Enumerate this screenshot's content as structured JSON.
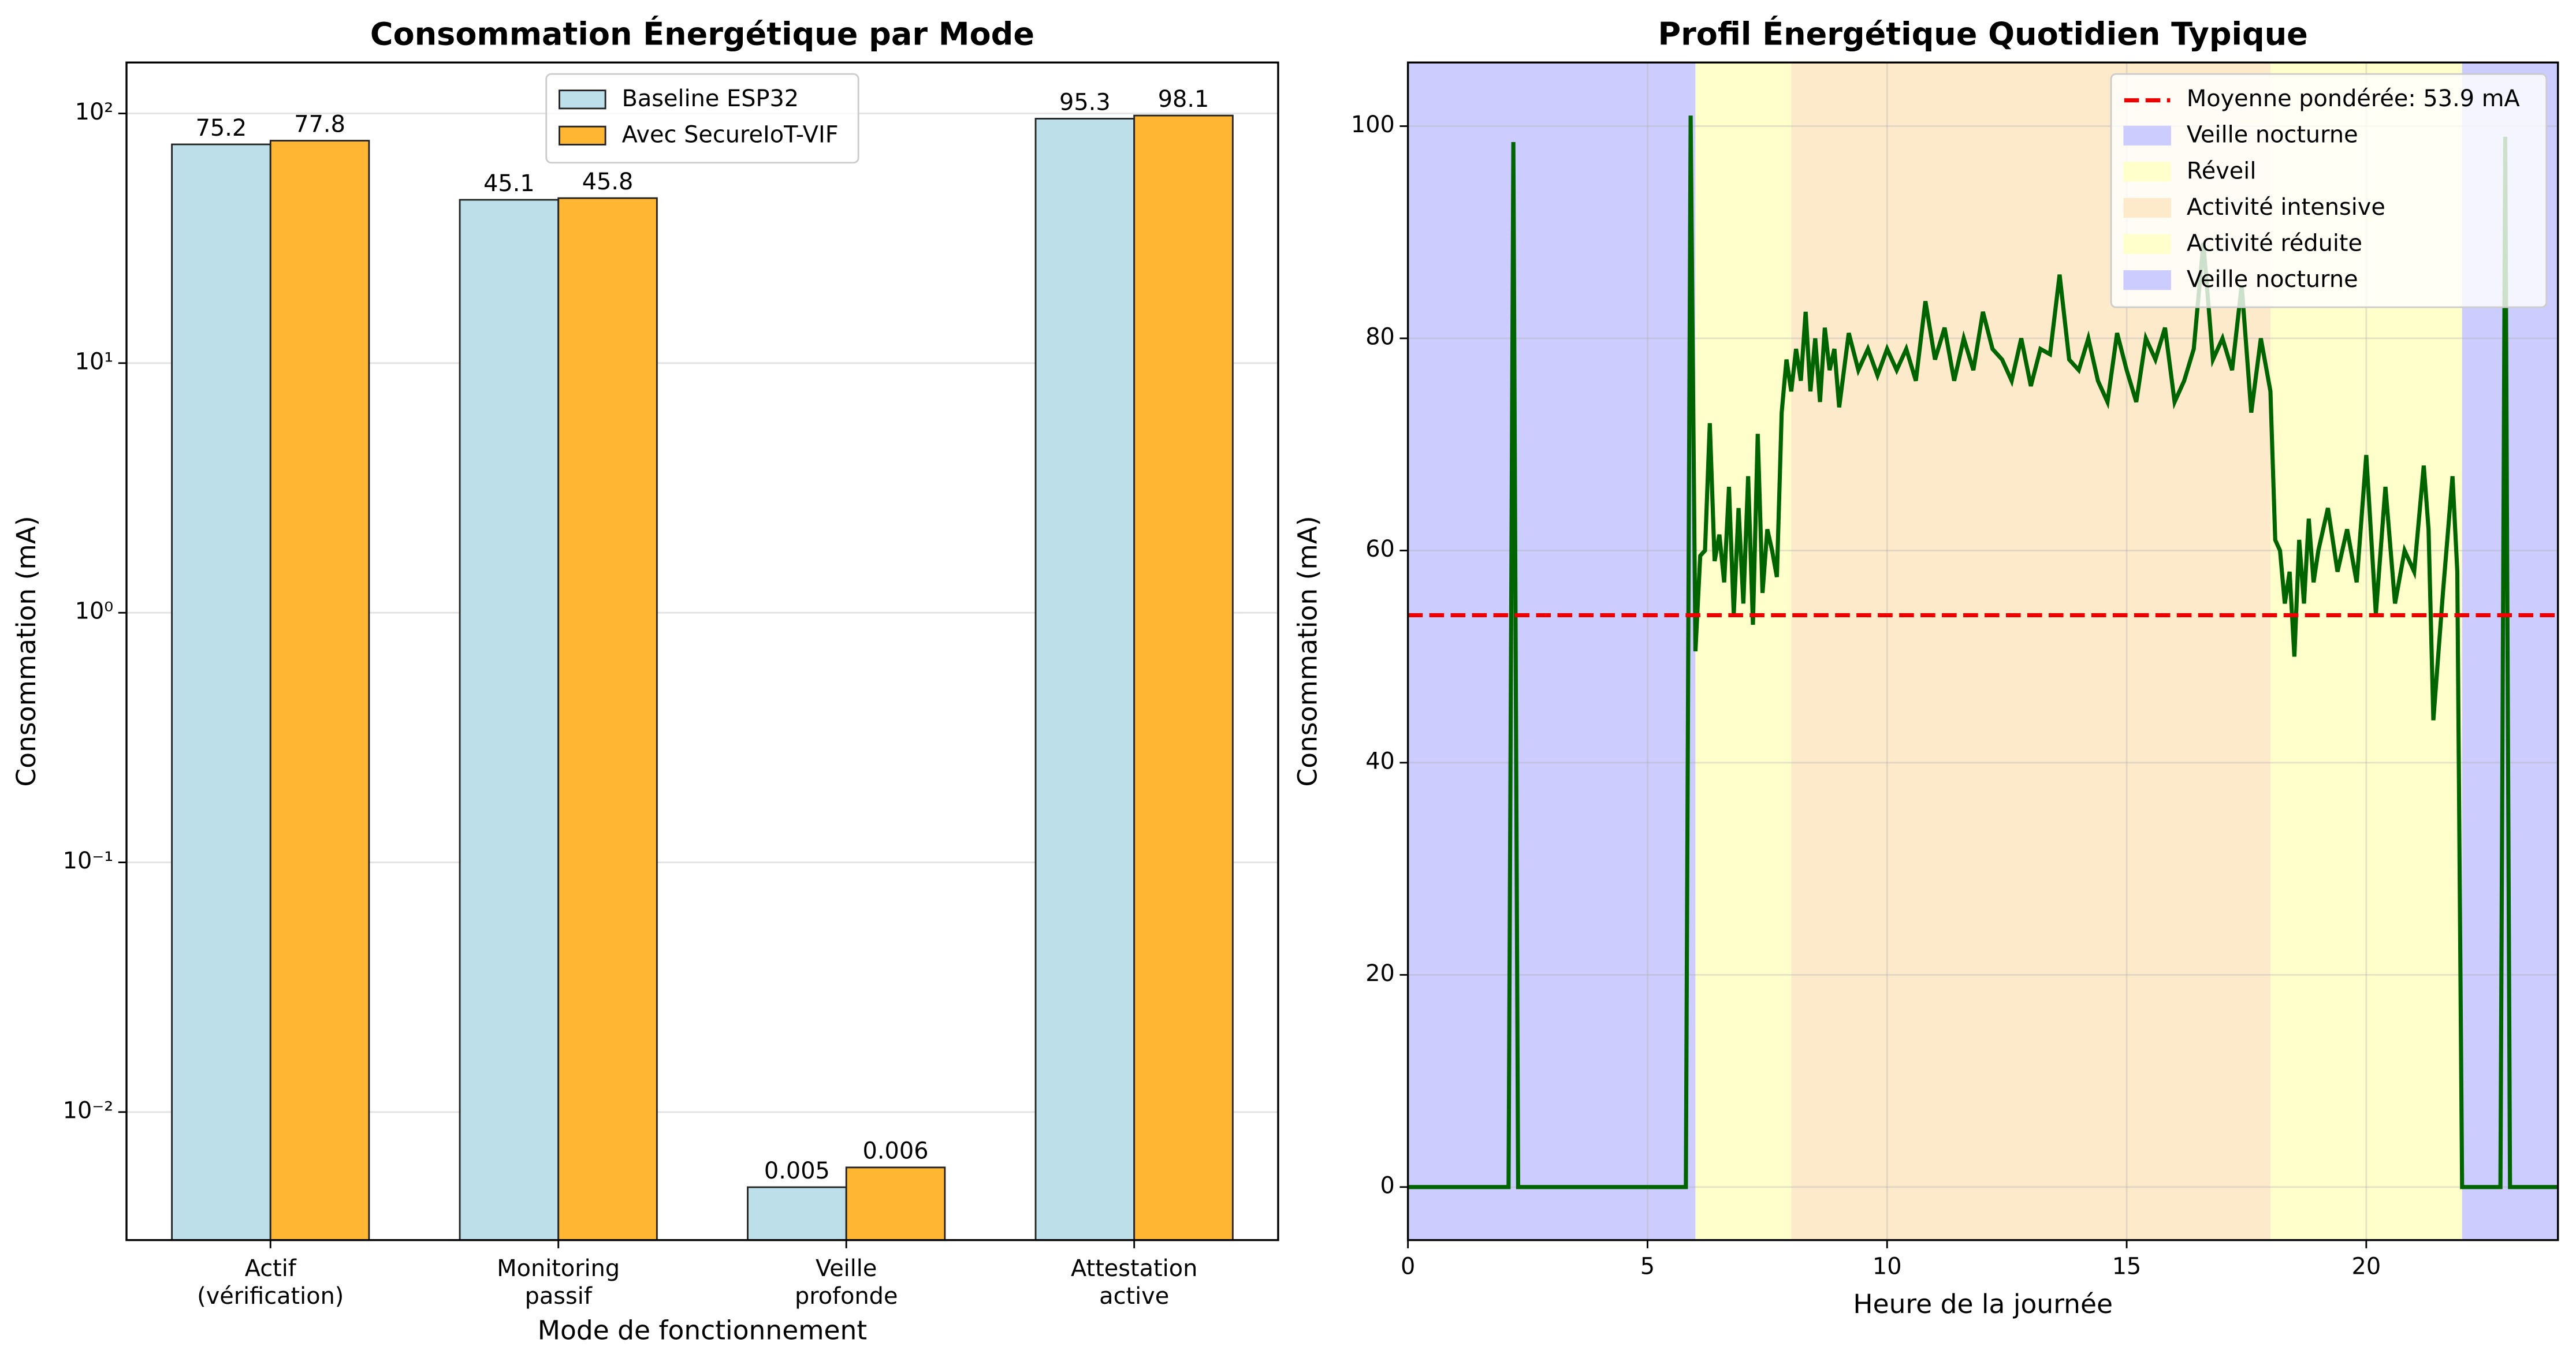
{
  "chart_data": [
    {
      "type": "bar",
      "title": "Consommation Énergétique par Mode",
      "xlabel": "Mode de fonctionnement",
      "ylabel": "Consommation (mA)",
      "categories": [
        [
          "Actif",
          "(vérification)"
        ],
        [
          "Monitoring",
          "passif"
        ],
        [
          "Veille",
          "profonde"
        ],
        [
          "Attestation",
          "active"
        ]
      ],
      "series": [
        {
          "name": "Baseline ESP32",
          "color": "#bddfe9",
          "values": [
            75.2,
            45.1,
            0.005,
            95.3
          ]
        },
        {
          "name": "Avec SecureIoT-VIF",
          "color": "#ffb733",
          "values": [
            77.8,
            45.8,
            0.006,
            98.1
          ]
        }
      ],
      "log": true,
      "ylim": [
        0.00307,
        160
      ],
      "yticks": [
        {
          "value": 0.01,
          "label": "10⁻²"
        },
        {
          "value": 0.1,
          "label": "10⁻¹"
        },
        {
          "value": 1,
          "label": "10⁰"
        },
        {
          "value": 10,
          "label": "10¹"
        },
        {
          "value": 100,
          "label": "10²"
        }
      ],
      "grid": true,
      "legend": "upper center"
    },
    {
      "type": "line",
      "title": "Profil Énergétique Quotidien Typique",
      "xlabel": "Heure de la journée",
      "ylabel": "Consommation (mA)",
      "x": [
        0,
        0.5,
        1,
        1.5,
        2.1,
        2.2,
        2.3,
        3,
        4,
        5,
        5.8,
        5.9,
        6.0,
        6.1,
        6.2,
        6.3,
        6.4,
        6.5,
        6.6,
        6.7,
        6.8,
        6.9,
        7.0,
        7.1,
        7.2,
        7.3,
        7.4,
        7.5,
        7.6,
        7.7,
        7.8,
        7.9,
        8.0,
        8.1,
        8.2,
        8.3,
        8.4,
        8.5,
        8.6,
        8.7,
        8.8,
        8.9,
        9.0,
        9.2,
        9.4,
        9.6,
        9.8,
        10.0,
        10.2,
        10.4,
        10.6,
        10.8,
        11.0,
        11.2,
        11.4,
        11.6,
        11.8,
        12.0,
        12.2,
        12.4,
        12.6,
        12.8,
        13.0,
        13.2,
        13.4,
        13.6,
        13.8,
        14.0,
        14.2,
        14.4,
        14.6,
        14.8,
        15.0,
        15.2,
        15.4,
        15.6,
        15.8,
        16.0,
        16.2,
        16.4,
        16.6,
        16.8,
        17.0,
        17.2,
        17.4,
        17.6,
        17.8,
        18.0,
        18.1,
        18.2,
        18.3,
        18.4,
        18.5,
        18.6,
        18.7,
        18.8,
        18.9,
        19.0,
        19.2,
        19.4,
        19.6,
        19.8,
        20.0,
        20.2,
        20.4,
        20.6,
        20.8,
        21.0,
        21.2,
        21.3,
        21.4,
        21.6,
        21.8,
        21.9,
        22.0,
        22.8,
        22.9,
        23.0,
        24
      ],
      "series": [
        {
          "color": "#006400",
          "values": [
            0,
            0,
            0,
            0,
            0,
            98.5,
            0,
            0,
            0,
            0,
            0,
            101,
            50.5,
            59.5,
            60,
            72,
            59,
            61.5,
            57,
            66,
            54,
            64,
            55,
            67,
            53,
            71,
            56,
            62,
            60,
            57.5,
            73,
            78,
            75,
            79,
            76,
            82.5,
            75,
            80,
            74,
            81,
            77,
            79,
            73.5,
            80.5,
            77,
            79,
            76.5,
            79,
            77,
            79,
            76,
            83.5,
            78,
            81,
            76,
            80,
            77,
            82.5,
            79,
            78,
            76,
            80,
            75.5,
            79,
            78.5,
            86,
            78,
            77,
            80,
            76,
            74,
            80.5,
            77,
            74,
            80,
            78,
            81,
            74,
            76,
            79,
            89,
            78,
            80,
            77,
            85,
            73,
            80,
            75,
            61,
            60,
            55,
            58,
            50,
            61,
            55,
            63,
            57,
            60,
            64,
            58,
            62,
            57,
            69,
            54,
            66,
            55,
            60,
            58,
            68,
            62,
            44,
            56,
            67,
            58,
            0,
            0,
            99,
            0,
            0
          ]
        }
      ],
      "regions": [
        {
          "name": "Veille nocturne",
          "range": [
            0,
            6
          ],
          "color": "#ccccff"
        },
        {
          "name": "Réveil",
          "range": [
            6,
            8
          ],
          "color": "#ffffcc"
        },
        {
          "name": "Activité intensive",
          "range": [
            8,
            18
          ],
          "color": "#fdeacb"
        },
        {
          "name": "Activité réduite",
          "range": [
            18,
            22
          ],
          "color": "#ffffcc"
        },
        {
          "name": "Veille nocturne",
          "range": [
            22,
            24
          ],
          "color": "#ccccff"
        }
      ],
      "mean": {
        "value": 53.9,
        "label": "Moyenne pondérée: 53.9 mA",
        "color": "#ee0000"
      },
      "xlim": [
        0,
        24
      ],
      "xticks": [
        0,
        5,
        10,
        15,
        20
      ],
      "ylim": [
        -5,
        106
      ],
      "yticks": [
        0,
        20,
        40,
        60,
        80,
        100
      ],
      "grid": true,
      "legend": "upper right"
    }
  ]
}
